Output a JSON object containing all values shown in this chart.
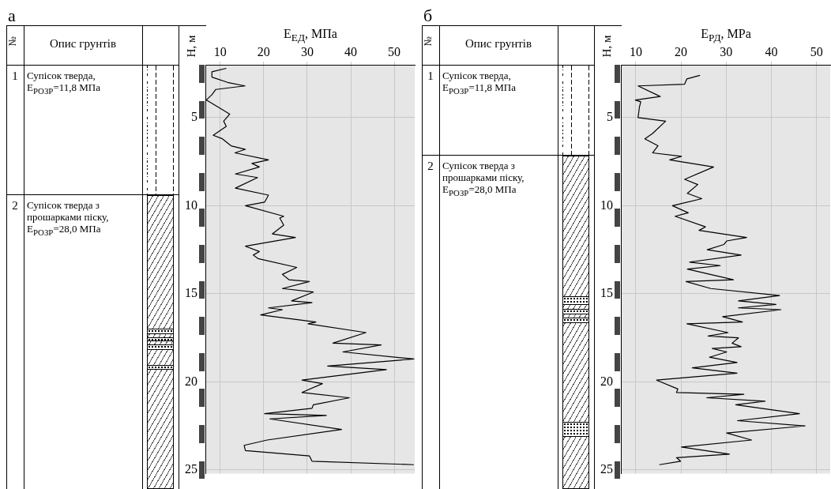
{
  "chart_data": [
    {
      "type": "line",
      "xlabel": "E$_{ЕД}$, МПа",
      "ylabel": "Н, м",
      "annotations": [
        "а",
        "№",
        "Опис грунтів",
        "1",
        "Супісок тверда, E$_{РОЗР}$=11,8 МПа",
        "2",
        "Супісок тверда з прошарками піску, E$_{РОЗР}$=28,0 МПа"
      ],
      "x": [
        11.4,
        8.1,
        8.1,
        11.7,
        15.7,
        9.0,
        8.1,
        6.8,
        10.2,
        12.2,
        10.8,
        11.4,
        8.4,
        10.5,
        12.5,
        15.8,
        13.4,
        21.1,
        17.3,
        19.0,
        13.5,
        18.6,
        13.5,
        21.1,
        20.2,
        15.8,
        24.6,
        23.7,
        24.6,
        22.0,
        27.3,
        15.8,
        19.0,
        17.6,
        18.7,
        27.6,
        24.3,
        25.8,
        30.5,
        24.3,
        31.4,
        26.4,
        31.1,
        21.1,
        24.3,
        19.3,
        32.0,
        30.2,
        43.5,
        35.9,
        47.0,
        38.2,
        54.5,
        34.7,
        48.2,
        28.8,
        33.5,
        28.8,
        39.7,
        31.4,
        31.1,
        20.2,
        34.4,
        21.4,
        37.9,
        20.8,
        15.5,
        15.8,
        30.5,
        31.1,
        54.5
      ],
      "values": [
        2.2,
        2.4,
        2.7,
        3.0,
        3.2,
        3.4,
        3.7,
        4.0,
        4.5,
        4.8,
        5.2,
        5.5,
        6.0,
        6.2,
        6.6,
        6.8,
        7.0,
        7.4,
        7.6,
        7.8,
        8.2,
        8.4,
        9.0,
        9.4,
        9.8,
        10.0,
        10.6,
        10.7,
        11.1,
        11.6,
        11.8,
        12.3,
        12.6,
        12.8,
        13.0,
        13.5,
        13.9,
        14.2,
        14.3,
        14.7,
        14.9,
        15.4,
        15.5,
        15.8,
        15.9,
        16.2,
        16.6,
        16.7,
        17.2,
        17.8,
        17.9,
        18.3,
        18.7,
        19.1,
        19.3,
        19.9,
        20.1,
        20.6,
        20.9,
        21.3,
        21.5,
        21.8,
        21.9,
        22.1,
        22.7,
        23.3,
        23.6,
        23.9,
        24.2,
        24.5,
        24.7
      ],
      "color": "#000000",
      "marker": "none",
      "line_style": "solid",
      "grid": true,
      "legend": false,
      "xlim": [
        6.6,
        54.7
      ],
      "xticks": [
        10,
        20,
        30,
        40,
        50
      ],
      "ylim": [
        25.2,
        2
      ],
      "yticks": [
        5,
        10,
        15,
        20,
        25
      ]
    },
    {
      "type": "line",
      "xlabel": "E$_{РД}$, MPa",
      "ylabel": "Н, м",
      "annotations": [
        "б",
        "№",
        "Опис грунтів",
        "1",
        "Супісок тверда, E$_{РОЗР}$=11,8 МПа",
        "2",
        "Супісок тверда з прошарками піску, E$_{РОЗР}$=28,0 МПа"
      ],
      "x": [
        24.2,
        21.3,
        20.8,
        10.5,
        15.4,
        9.9,
        11.1,
        10.8,
        10.5,
        16.6,
        13.7,
        12.0,
        14.9,
        13.7,
        20.1,
        17.5,
        27.2,
        20.8,
        23.7,
        21.4,
        24.6,
        18.1,
        21.6,
        18.7,
        25.4,
        24.0,
        34.5,
        30.1,
        29.5,
        25.8,
        33.3,
        21.9,
        28.7,
        21.4,
        31.6,
        21.1,
        26.6,
        41.8,
        32.7,
        41.0,
        32.7,
        42.1,
        29.2,
        33.6,
        21.3,
        30.4,
        26.0,
        32.7,
        31.3,
        33.3,
        26.9,
        30.1,
        26.3,
        32.4,
        22.5,
        32.4,
        14.6,
        19.3,
        19.0,
        33.9,
        25.7,
        38.6,
        32.1,
        46.2,
        32.5,
        47.4,
        30.1,
        35.6,
        20.1,
        30.7,
        19.0,
        19.9,
        15.2
      ],
      "values": [
        2.6,
        2.8,
        3.1,
        3.2,
        3.8,
        4.0,
        4.1,
        4.4,
        5.0,
        5.2,
        5.9,
        6.2,
        6.6,
        7.0,
        7.2,
        7.4,
        7.8,
        8.5,
        8.8,
        9.3,
        9.6,
        10.0,
        10.4,
        10.6,
        11.2,
        11.4,
        11.8,
        12.0,
        12.2,
        12.5,
        12.8,
        13.2,
        13.4,
        13.6,
        14.2,
        14.3,
        14.7,
        15.1,
        15.4,
        15.6,
        15.8,
        15.9,
        16.3,
        16.6,
        16.7,
        17.2,
        17.4,
        17.5,
        17.8,
        18.0,
        18.1,
        18.3,
        18.6,
        18.9,
        19.2,
        19.5,
        19.9,
        20.4,
        20.6,
        20.7,
        20.9,
        21.1,
        21.3,
        21.8,
        22.2,
        22.5,
        22.9,
        23.3,
        23.7,
        24.1,
        24.3,
        24.5,
        24.7
      ],
      "color": "#000000",
      "marker": "none",
      "line_style": "solid",
      "grid": true,
      "legend": false,
      "xlim": [
        6.7,
        53.0
      ],
      "xticks": [
        10,
        20,
        30,
        40,
        50
      ],
      "ylim": [
        25.2,
        2
      ],
      "yticks": [
        5,
        10,
        15,
        20,
        25
      ]
    }
  ]
}
